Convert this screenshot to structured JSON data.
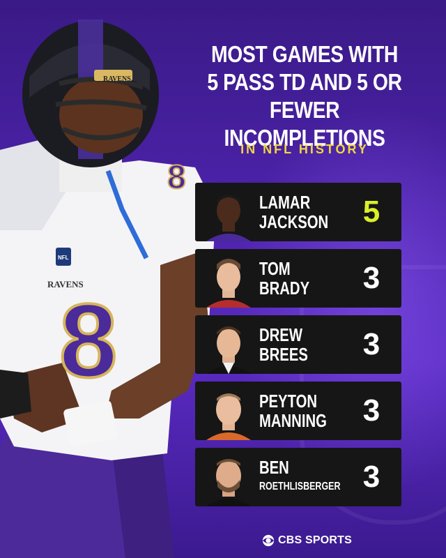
{
  "title": {
    "lines": [
      "MOST GAMES WITH",
      "5 PASS TD AND 5 OR",
      "FEWER INCOMPLETIONS"
    ],
    "subtitle": "IN NFL HISTORY"
  },
  "colors": {
    "background": "#4b22a8",
    "highlight": "#d8ef2a",
    "subtitle": "#f2d642",
    "row_background": "#161616"
  },
  "leaders": [
    {
      "name_lines": [
        "LAMAR",
        "JACKSON"
      ],
      "count": "5",
      "highlight": true,
      "jersey": "purple"
    },
    {
      "name_lines": [
        "TOM",
        "BRADY"
      ],
      "count": "3",
      "highlight": false,
      "jersey": "red"
    },
    {
      "name_lines": [
        "DREW",
        "BREES"
      ],
      "count": "3",
      "highlight": false,
      "jersey": "black"
    },
    {
      "name_lines": [
        "PEYTON",
        "MANNING"
      ],
      "count": "3",
      "highlight": false,
      "jersey": "orange"
    },
    {
      "name_lines": [
        "BEN",
        "ROETHLISBERGER"
      ],
      "count": "3",
      "highlight": false,
      "jersey": "black"
    }
  ],
  "player_photo": {
    "jersey_number": "8",
    "helmet_text": "RAVENS",
    "chest_text": "RAVENS",
    "badge_text": "NFL"
  },
  "footer": {
    "brand": "CBS SPORTS",
    "icon": "cbs-eye-icon"
  }
}
